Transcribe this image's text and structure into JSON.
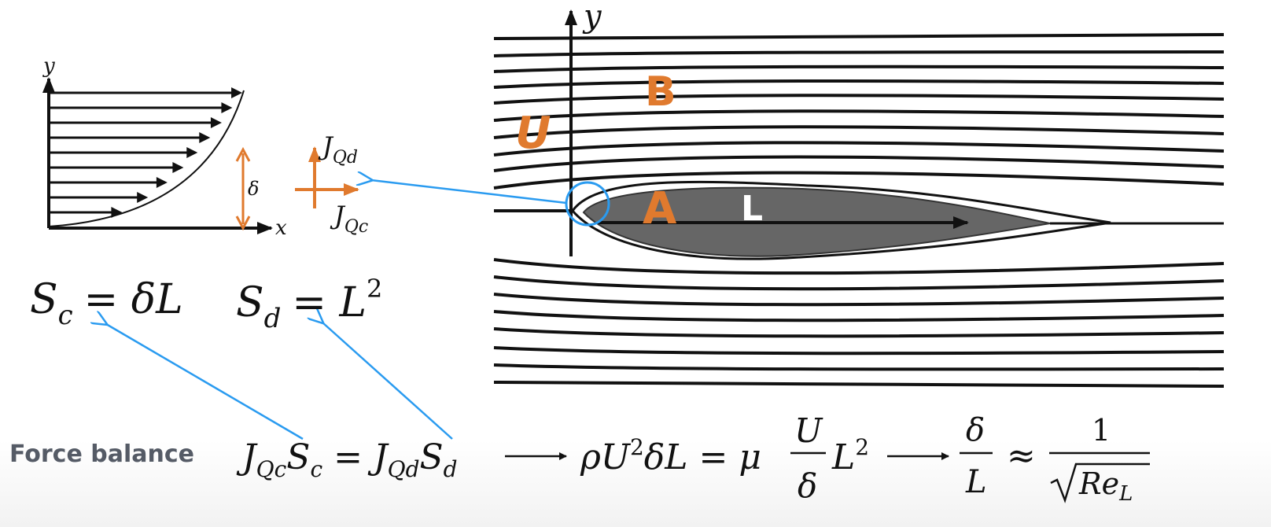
{
  "profile": {
    "y_label": "y",
    "x_label": "x",
    "delta_label": "δ"
  },
  "flux": {
    "jqd_main": "J",
    "jqd_sub": "Qd",
    "jqc_main": "J",
    "jqc_sub": "Qc"
  },
  "flow": {
    "y_label": "y",
    "region_a": "A",
    "region_b": "B",
    "velocity_label": "U",
    "length_label": "L"
  },
  "equations": {
    "sc": {
      "lhs": "S",
      "sub": "c",
      "rhs": "= δL"
    },
    "sd": {
      "lhs": "S",
      "sub": "d",
      "rhs": "= L",
      "sup": "2"
    }
  },
  "force_balance": {
    "label": "Force balance"
  },
  "colors": {
    "orange": "#e07a2e",
    "blue": "#2a9bf0",
    "body_gray": "#666666"
  }
}
